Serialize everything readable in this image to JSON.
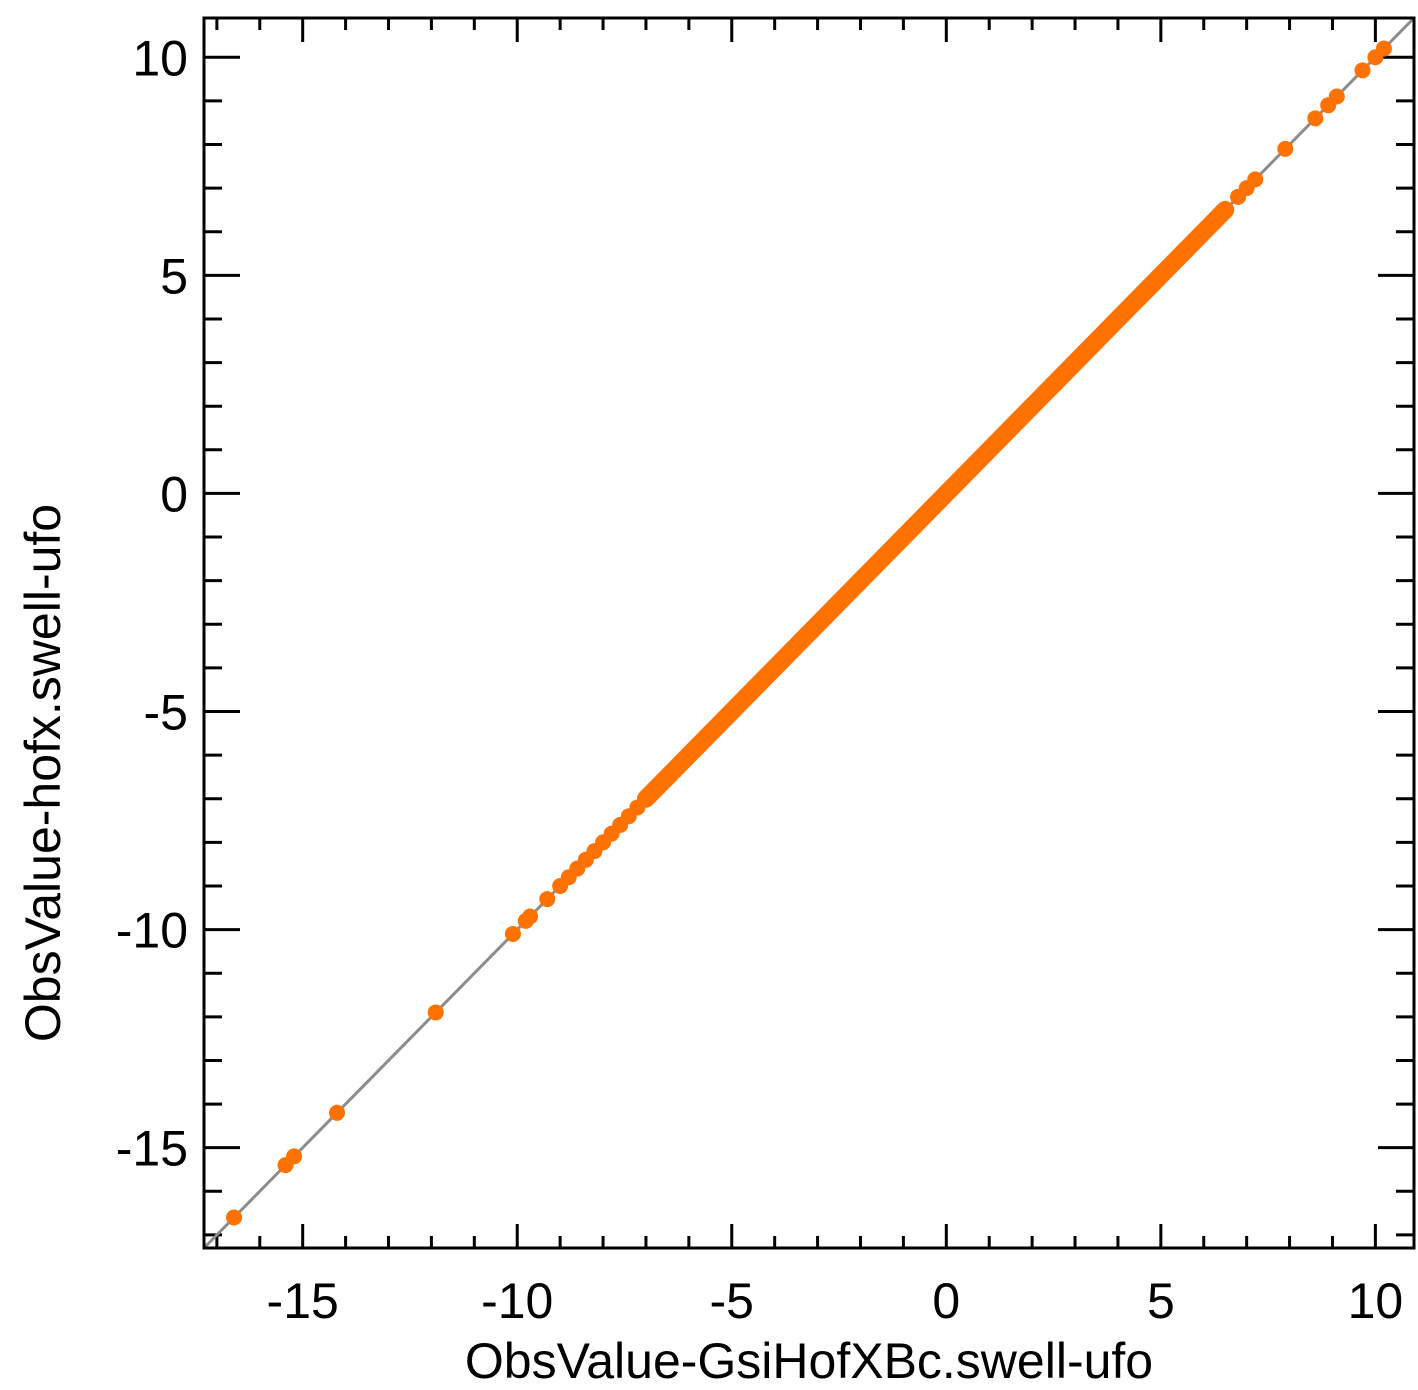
{
  "chart_data": {
    "type": "scatter",
    "xlabel": "ObsValue-GsiHofXBc.swell-ufo",
    "ylabel": "ObsValue-hofx.swell-ufo",
    "xlim": [
      -17.3,
      10.9
    ],
    "ylim": [
      -17.3,
      10.9
    ],
    "x_ticks": [
      -15,
      -10,
      -5,
      0,
      5,
      10
    ],
    "y_ticks": [
      -15,
      -10,
      -5,
      0,
      5,
      10
    ],
    "x_tick_labels": [
      "-15",
      "-10",
      "-5",
      "0",
      "5",
      "10"
    ],
    "y_tick_labels": [
      "-15",
      "-10",
      "-5",
      "0",
      "5",
      "10"
    ],
    "x_minor_step": 1,
    "y_minor_step": 1,
    "marker_color": "#ff7200",
    "reference_line_color": "#8c8c8c",
    "reference_line": "y = x",
    "dense_segments": [
      [
        -7.0,
        6.5
      ]
    ],
    "points": [
      [
        -16.6,
        -16.6
      ],
      [
        -15.4,
        -15.4
      ],
      [
        -15.2,
        -15.2
      ],
      [
        -14.2,
        -14.2
      ],
      [
        -11.9,
        -11.9
      ],
      [
        -10.1,
        -10.1
      ],
      [
        -9.8,
        -9.8
      ],
      [
        -9.7,
        -9.7
      ],
      [
        -9.3,
        -9.3
      ],
      [
        -9.0,
        -9.0
      ],
      [
        -8.8,
        -8.8
      ],
      [
        -8.6,
        -8.6
      ],
      [
        -8.4,
        -8.4
      ],
      [
        -8.2,
        -8.2
      ],
      [
        -8.0,
        -8.0
      ],
      [
        -7.8,
        -7.8
      ],
      [
        -7.6,
        -7.6
      ],
      [
        -7.4,
        -7.4
      ],
      [
        -7.2,
        -7.2
      ],
      [
        6.8,
        6.8
      ],
      [
        7.0,
        7.0
      ],
      [
        7.2,
        7.2
      ],
      [
        7.9,
        7.9
      ],
      [
        8.6,
        8.6
      ],
      [
        8.9,
        8.9
      ],
      [
        9.1,
        9.1
      ],
      [
        9.7,
        9.7
      ],
      [
        10.0,
        10.0
      ],
      [
        10.2,
        10.2
      ]
    ]
  }
}
